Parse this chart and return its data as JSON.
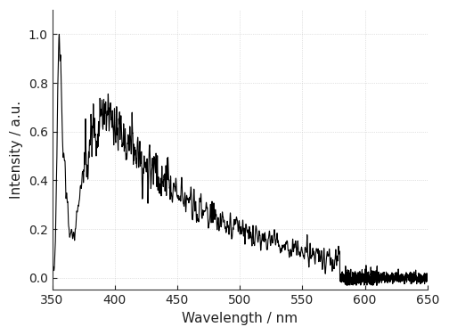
{
  "title": "",
  "xlabel": "Wavelength / nm",
  "ylabel": "Intensity / a.u.",
  "xlim": [
    350,
    650
  ],
  "ylim": [
    -0.05,
    1.1
  ],
  "xticks": [
    350,
    400,
    450,
    500,
    550,
    600,
    650
  ],
  "yticks": [
    0.0,
    0.2,
    0.4,
    0.6,
    0.8,
    1.0
  ],
  "line_color": "#000000",
  "line_width": 0.8,
  "background_color": "#ffffff",
  "figsize": [
    5.04,
    3.76
  ],
  "dpi": 100
}
